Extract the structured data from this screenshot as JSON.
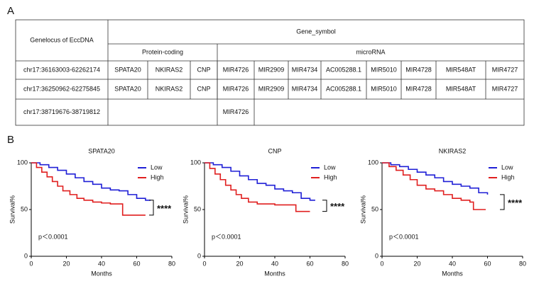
{
  "panel_labels": [
    "A",
    "B"
  ],
  "table": {
    "header": {
      "locus": "Genelocus of EccDNA",
      "gene_symbol": "Gene_symbol",
      "groups": [
        "Protein-coding",
        "microRNA"
      ]
    },
    "rows": [
      {
        "locus": "chr17:36163003-62262174",
        "protein_coding": [
          "SPATA20",
          "NKIRAS2",
          "CNP"
        ],
        "microrna": [
          "MIR4726",
          "MIR2909",
          "MIR4734",
          "AC005288.1",
          "MIR5010",
          "MIR4728",
          "MIR548AT",
          "MIR4727"
        ]
      },
      {
        "locus": "chr17:36250962-62275845",
        "protein_coding": [
          "SPATA20",
          "NKIRAS2",
          "CNP"
        ],
        "microrna": [
          "MIR4726",
          "MIR2909",
          "MIR4734",
          "AC005288.1",
          "MIR5010",
          "MIR4728",
          "MIR548AT",
          "MIR4727"
        ]
      },
      {
        "locus": "chr17:38719676-38719812",
        "protein_coding": [],
        "microrna": [
          "MIR4726"
        ]
      }
    ]
  },
  "chart_data": [
    {
      "type": "line",
      "title": "SPATA20",
      "x_label": "Months",
      "y_label": "Survival%",
      "annotation": "p＜0.0001",
      "significance": "****",
      "xlim": [
        0,
        80
      ],
      "xticks": [
        0,
        20,
        40,
        60,
        80
      ],
      "ylim": [
        0,
        100
      ],
      "yticks": [
        0,
        50,
        100
      ],
      "series": [
        {
          "name": "Low",
          "color": "#1f1fd6",
          "x": [
            0,
            5,
            10,
            15,
            20,
            25,
            30,
            35,
            40,
            45,
            50,
            55,
            60,
            65,
            68
          ],
          "values": [
            100,
            98,
            95,
            92,
            88,
            84,
            80,
            77,
            73,
            71,
            70,
            66,
            62,
            60,
            60
          ]
        },
        {
          "name": "High",
          "color": "#e01f1f",
          "x": [
            0,
            3,
            6,
            9,
            12,
            15,
            18,
            22,
            26,
            30,
            35,
            40,
            45,
            50,
            52,
            60,
            65
          ],
          "values": [
            100,
            95,
            90,
            85,
            80,
            75,
            70,
            66,
            62,
            60,
            58,
            57,
            56,
            56,
            44,
            44,
            44
          ]
        }
      ]
    },
    {
      "type": "line",
      "title": "CNP",
      "x_label": "Months",
      "y_label": "Survival%",
      "annotation": "p＜0.0001",
      "significance": "****",
      "xlim": [
        0,
        80
      ],
      "xticks": [
        0,
        20,
        40,
        60,
        80
      ],
      "ylim": [
        0,
        100
      ],
      "yticks": [
        0,
        50,
        100
      ],
      "series": [
        {
          "name": "Low",
          "color": "#1f1fd6",
          "x": [
            0,
            5,
            10,
            15,
            20,
            25,
            30,
            35,
            40,
            45,
            50,
            55,
            60,
            63
          ],
          "values": [
            100,
            98,
            95,
            91,
            86,
            82,
            78,
            76,
            72,
            70,
            68,
            62,
            60,
            60
          ]
        },
        {
          "name": "High",
          "color": "#e01f1f",
          "x": [
            0,
            3,
            6,
            9,
            12,
            15,
            18,
            21,
            25,
            30,
            40,
            50,
            52,
            55,
            60
          ],
          "values": [
            100,
            94,
            88,
            82,
            76,
            71,
            66,
            62,
            58,
            56,
            55,
            55,
            48,
            48,
            48
          ]
        }
      ]
    },
    {
      "type": "line",
      "title": "NKIRAS2",
      "x_label": "Months",
      "y_label": "Survival%",
      "annotation": "p＜0.0001",
      "significance": "****",
      "xlim": [
        0,
        80
      ],
      "xticks": [
        0,
        20,
        40,
        60,
        80
      ],
      "ylim": [
        0,
        100
      ],
      "yticks": [
        0,
        50,
        100
      ],
      "series": [
        {
          "name": "Low",
          "color": "#1f1fd6",
          "x": [
            0,
            5,
            10,
            15,
            20,
            25,
            30,
            35,
            40,
            45,
            50,
            55,
            60
          ],
          "values": [
            100,
            98,
            96,
            93,
            90,
            87,
            84,
            80,
            77,
            75,
            73,
            68,
            66
          ]
        },
        {
          "name": "High",
          "color": "#e01f1f",
          "x": [
            0,
            4,
            8,
            12,
            16,
            20,
            25,
            30,
            35,
            40,
            45,
            50,
            52,
            55,
            59
          ],
          "values": [
            100,
            96,
            92,
            87,
            82,
            76,
            72,
            70,
            66,
            62,
            60,
            58,
            50,
            50,
            50
          ]
        }
      ]
    }
  ]
}
